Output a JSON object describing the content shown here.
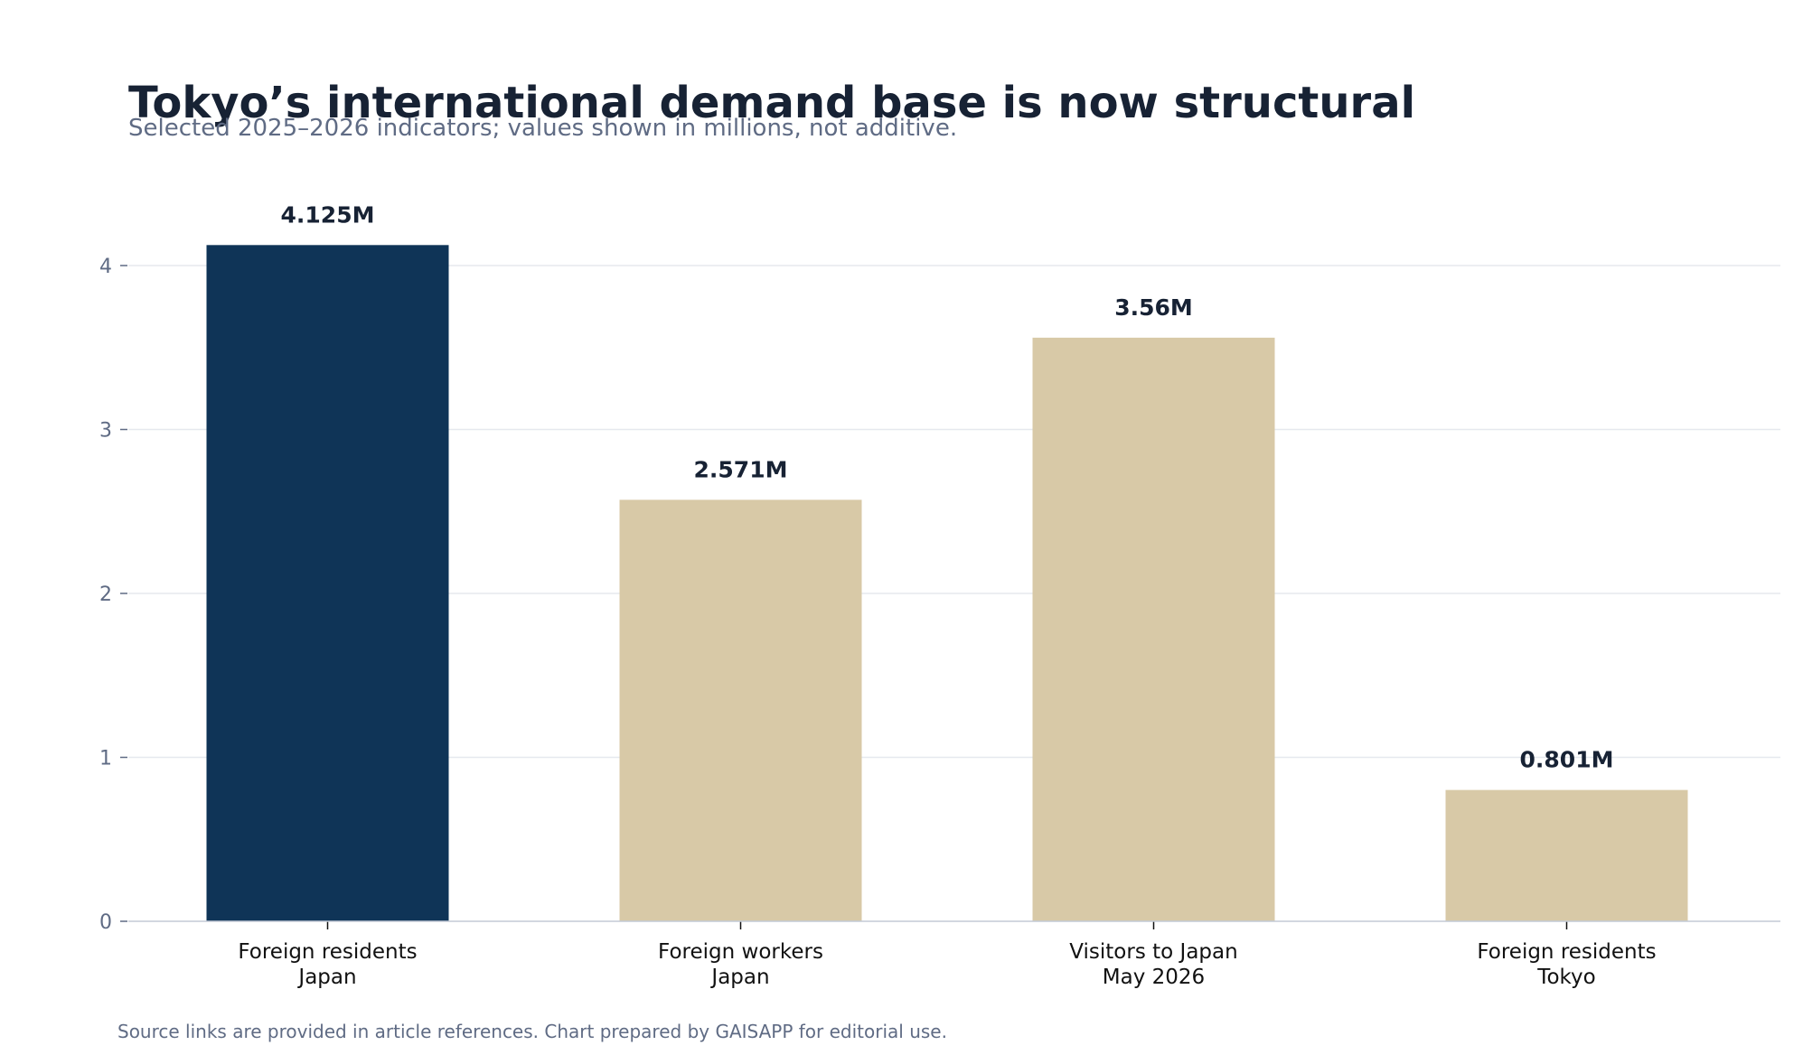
{
  "chart_data": {
    "type": "bar",
    "title": "Tokyo’s international demand base is now structural",
    "subtitle": "Selected 2025–2026 indicators; values shown in millions, not additive.",
    "categories": [
      [
        "Foreign residents",
        "Japan"
      ],
      [
        "Foreign workers",
        "Japan"
      ],
      [
        "Visitors to Japan",
        "May 2026"
      ],
      [
        "Foreign residents",
        "Tokyo"
      ]
    ],
    "values": [
      4.125,
      2.571,
      3.56,
      0.801
    ],
    "data_labels": [
      "4.125M",
      "2.571M",
      "3.56M",
      "0.801M"
    ],
    "bar_colors": [
      "#0f3457",
      "#d8c9a7",
      "#d8c9a7",
      "#d8c9a7"
    ],
    "ylim": [
      0,
      4.2
    ],
    "yticks": [
      0,
      1,
      2,
      3,
      4
    ],
    "grid": true,
    "xlabel": "",
    "ylabel": "",
    "footer": "Source links are provided in article references. Chart prepared by GAISAPP for editorial use."
  }
}
